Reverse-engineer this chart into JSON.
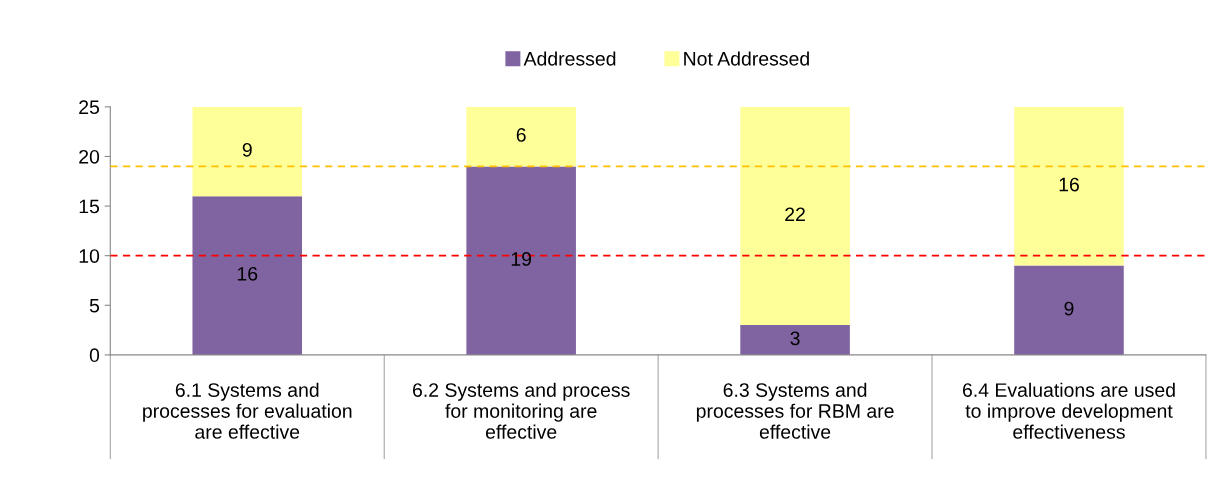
{
  "chart_data": {
    "type": "bar",
    "stacked": true,
    "categories": [
      "6.1 Systems and processes for evaluation are effective",
      "6.2 Systems and process for monitoring are effective",
      "6.3 Systems and processes for RBM are effective",
      "6.4 Evaluations are used to improve development effectiveness"
    ],
    "series": [
      {
        "name": "Addressed",
        "color": "#8064a2",
        "values": [
          16,
          19,
          3,
          9
        ]
      },
      {
        "name": "Not Addressed",
        "color": "#ffff99",
        "values": [
          9,
          6,
          22,
          16
        ]
      }
    ],
    "ylim": [
      0,
      25
    ],
    "yticks": [
      0,
      5,
      10,
      15,
      20,
      25
    ],
    "ref_lines": [
      {
        "axis": "y",
        "value": 19,
        "color": "#ffc000",
        "line_style": "dashed"
      },
      {
        "axis": "y",
        "value": 10,
        "color": "#ff0000",
        "line_style": "dashed"
      }
    ],
    "data_labels": true,
    "legend": "top",
    "grid": false
  }
}
